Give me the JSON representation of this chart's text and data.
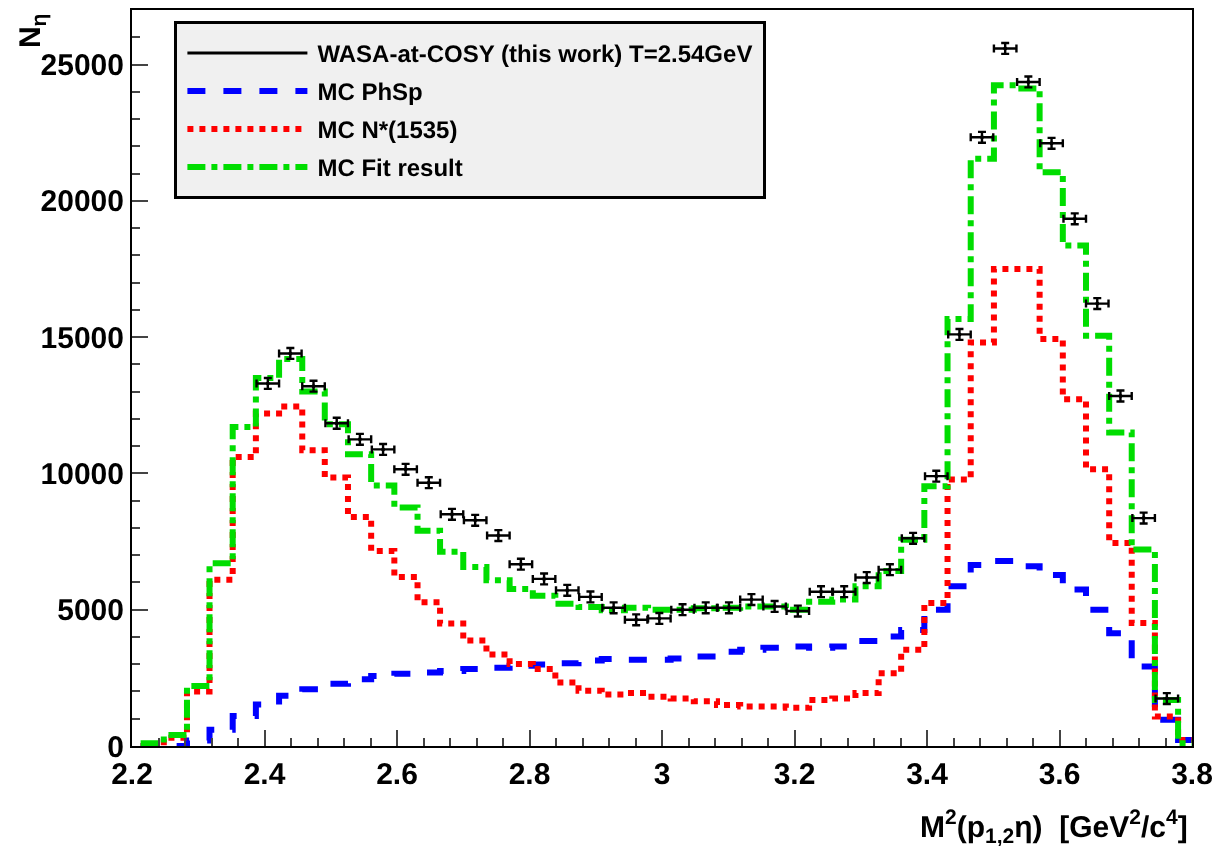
{
  "chart_data": {
    "type": "scatter",
    "xlabel": "M$^{2}$(p$_{1,2}$η)  [GeV$^{2}$/c$^{4}$]",
    "ylabel": "N$_{η}$",
    "bins": [
      2.213,
      2.248,
      2.283,
      2.317,
      2.352,
      2.387,
      2.422,
      2.457,
      2.491,
      2.526,
      2.561,
      2.596,
      2.631,
      2.665,
      2.7,
      2.735,
      2.77,
      2.805,
      2.839,
      2.874,
      2.909,
      2.944,
      2.979,
      3.013,
      3.048,
      3.083,
      3.118,
      3.153,
      3.187,
      3.222,
      3.257,
      3.292,
      3.327,
      3.361,
      3.396,
      3.431,
      3.466,
      3.501,
      3.535,
      3.57,
      3.605,
      3.64,
      3.675,
      3.709,
      3.744,
      3.779,
      3.8
    ],
    "series": [
      {
        "name": "WASA-at-COSY (this work) T=2.54GeV",
        "color": "#000000",
        "x": [
          2.405,
          2.439,
          2.474,
          2.509,
          2.544,
          2.579,
          2.613,
          2.648,
          2.683,
          2.718,
          2.753,
          2.787,
          2.822,
          2.857,
          2.892,
          2.927,
          2.961,
          2.996,
          3.031,
          3.066,
          3.101,
          3.135,
          3.17,
          3.205,
          3.24,
          3.275,
          3.309,
          3.344,
          3.379,
          3.414,
          3.449,
          3.483,
          3.518,
          3.553,
          3.588,
          3.623,
          3.657,
          3.692,
          3.727,
          3.762
        ],
        "values": [
          13300,
          14400,
          13200,
          11840,
          11250,
          10880,
          10150,
          9660,
          8500,
          8280,
          7720,
          6670,
          6130,
          5710,
          5470,
          5070,
          4630,
          4680,
          5000,
          5070,
          5070,
          5370,
          5120,
          4950,
          5660,
          5660,
          6180,
          6470,
          7620,
          9900,
          15100,
          22330,
          25590,
          24360,
          22110,
          19340,
          16230,
          12840,
          8360,
          1740
        ],
        "errors": [
          200,
          200,
          200,
          200,
          200,
          200,
          200,
          200,
          200,
          200,
          200,
          200,
          200,
          200,
          200,
          200,
          200,
          200,
          200,
          200,
          200,
          200,
          200,
          200,
          200,
          200,
          200,
          200,
          200,
          200,
          200,
          200,
          200,
          200,
          200,
          200,
          200,
          200,
          200,
          200
        ],
        "xerrors": [
          0.017,
          0.017,
          0.017,
          0.017,
          0.017,
          0.017,
          0.017,
          0.017,
          0.017,
          0.017,
          0.017,
          0.017,
          0.017,
          0.017,
          0.017,
          0.017,
          0.017,
          0.017,
          0.017,
          0.017,
          0.017,
          0.017,
          0.017,
          0.017,
          0.017,
          0.017,
          0.017,
          0.017,
          0.017,
          0.017,
          0.017,
          0.017,
          0.017,
          0.017,
          0.017,
          0.017,
          0.017,
          0.017,
          0.017,
          0.017
        ]
      },
      {
        "name": "MC PhSp",
        "type": "histogram",
        "color": "#0000ff",
        "line_style": "dashed",
        "values": [
          0,
          0,
          200,
          600,
          1100,
          1520,
          1840,
          2080,
          2280,
          2450,
          2570,
          2650,
          2700,
          2750,
          2820,
          2870,
          2940,
          2990,
          3040,
          3140,
          3190,
          3160,
          3160,
          3210,
          3280,
          3460,
          3530,
          3600,
          3650,
          3600,
          3650,
          3850,
          4020,
          4260,
          5000,
          5860,
          6640,
          6790,
          6590,
          6270,
          5740,
          5000,
          4140,
          2920,
          960,
          220
        ]
      },
      {
        "name": "MC N*(1535)",
        "type": "histogram",
        "color": "#ff0000",
        "line_style": "dotted",
        "values": [
          0,
          300,
          2000,
          6100,
          10600,
          12200,
          12450,
          10850,
          9850,
          8400,
          7150,
          6200,
          5270,
          4490,
          3870,
          3360,
          3010,
          2820,
          2330,
          2030,
          1890,
          1940,
          1810,
          1740,
          1640,
          1500,
          1450,
          1450,
          1400,
          1690,
          1740,
          1940,
          2670,
          3530,
          5250,
          9780,
          14800,
          17500,
          17500,
          14930,
          12720,
          10150,
          7450,
          4510,
          1080,
          220
        ]
      },
      {
        "name": "MC Fit result",
        "type": "histogram",
        "color": "#00dd00",
        "line_style": "dashdot",
        "values": [
          100,
          400,
          2200,
          6700,
          11700,
          13500,
          14200,
          13000,
          11800,
          10700,
          9560,
          8750,
          7900,
          7130,
          6570,
          6080,
          5760,
          5510,
          5220,
          5100,
          4980,
          5070,
          5000,
          5000,
          5050,
          5070,
          5120,
          5120,
          5000,
          5290,
          5370,
          5860,
          6420,
          7570,
          9530,
          15660,
          21540,
          24240,
          24120,
          21050,
          18360,
          15050,
          11500,
          7210,
          1690,
          100
        ]
      }
    ],
    "xlim": [
      2.2,
      3.8
    ],
    "xticks": [
      2.2,
      2.4,
      2.6,
      2.8,
      3,
      3.2,
      3.4,
      3.6,
      3.8
    ],
    "ylim": [
      0,
      27000
    ],
    "yticks": [
      0,
      5000,
      10000,
      15000,
      20000,
      25000
    ],
    "legend": "top left"
  }
}
